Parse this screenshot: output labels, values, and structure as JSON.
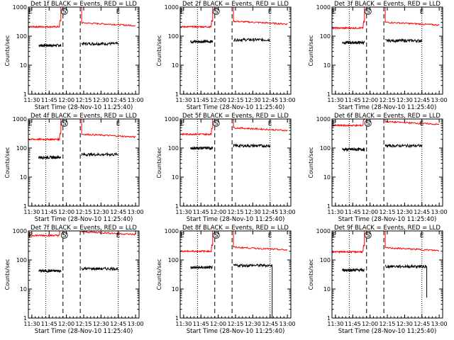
{
  "shared": {
    "ylabel": "Counts/sec",
    "xlabel": "Start Time (28-Nov-10 11:25:40)",
    "xticks": [
      "11:30",
      "11:45",
      "12:00",
      "12:15",
      "12:30",
      "12:45",
      "13:00"
    ],
    "yticks": [
      "1",
      "10",
      "100",
      "1000"
    ],
    "marker_S": "S",
    "marker_E": "E",
    "colors": {
      "events": "#000000",
      "lld": "#ff0000",
      "axes": "#000000"
    }
  },
  "chart_data": [
    {
      "type": "line",
      "title": "Det 1f BLACK = Events, RED = LLD",
      "x_range_min": [
        11.45,
        13.05
      ],
      "y_range": [
        1,
        1000
      ],
      "y_scale": "log",
      "dotted_lines_min": [
        11.7,
        12.75
      ],
      "dashed_lines_min": [
        11.95,
        12.2
      ],
      "series": [
        {
          "name": "Events",
          "segments": [
            {
              "x_range": [
                11.6,
                11.92
              ],
              "level": 48
            },
            {
              "x_range": [
                12.22,
                12.75
              ],
              "level": 55
            }
          ]
        },
        {
          "name": "LLD",
          "segments": [
            {
              "x_range": [
                11.45,
                11.92
              ],
              "level": 210
            },
            {
              "x_range": [
                12.22,
                13.0
              ],
              "level": 230
            }
          ]
        }
      ]
    },
    {
      "type": "line",
      "title": "Det 2f BLACK = Events, RED = LLD",
      "x_range_min": [
        11.45,
        13.05
      ],
      "y_range": [
        1,
        1000
      ],
      "y_scale": "log",
      "dotted_lines_min": [
        11.7,
        12.75
      ],
      "dashed_lines_min": [
        11.95,
        12.2
      ],
      "series": [
        {
          "name": "Events",
          "segments": [
            {
              "x_range": [
                11.6,
                11.92
              ],
              "level": 65
            },
            {
              "x_range": [
                12.22,
                12.75
              ],
              "level": 75
            }
          ]
        },
        {
          "name": "LLD",
          "segments": [
            {
              "x_range": [
                11.45,
                11.92
              ],
              "level": 210
            },
            {
              "x_range": [
                12.22,
                13.0
              ],
              "level": 260
            }
          ]
        }
      ]
    },
    {
      "type": "line",
      "title": "Det 3f BLACK = Events, RED = LLD",
      "x_range_min": [
        11.45,
        13.05
      ],
      "y_range": [
        1,
        1000
      ],
      "y_scale": "log",
      "dotted_lines_min": [
        11.7,
        12.75
      ],
      "dashed_lines_min": [
        11.95,
        12.2
      ],
      "series": [
        {
          "name": "Events",
          "segments": [
            {
              "x_range": [
                11.6,
                11.92
              ],
              "level": 60
            },
            {
              "x_range": [
                12.22,
                12.75
              ],
              "level": 70
            }
          ]
        },
        {
          "name": "LLD",
          "segments": [
            {
              "x_range": [
                11.45,
                11.92
              ],
              "level": 190
            },
            {
              "x_range": [
                12.22,
                13.0
              ],
              "level": 240
            }
          ]
        }
      ]
    },
    {
      "type": "line",
      "title": "Det 4f BLACK = Events, RED = LLD",
      "x_range_min": [
        11.45,
        13.05
      ],
      "y_range": [
        1,
        1000
      ],
      "y_scale": "log",
      "dotted_lines_min": [
        11.7,
        12.75
      ],
      "dashed_lines_min": [
        11.95,
        12.2
      ],
      "series": [
        {
          "name": "Events",
          "segments": [
            {
              "x_range": [
                11.6,
                11.92
              ],
              "level": 48
            },
            {
              "x_range": [
                12.22,
                12.75
              ],
              "level": 60
            }
          ]
        },
        {
          "name": "LLD",
          "segments": [
            {
              "x_range": [
                11.45,
                11.92
              ],
              "level": 200
            },
            {
              "x_range": [
                12.22,
                13.0
              ],
              "level": 240
            }
          ]
        }
      ]
    },
    {
      "type": "line",
      "title": "Det 5f BLACK = Events, RED = LLD",
      "x_range_min": [
        11.45,
        13.05
      ],
      "y_range": [
        1,
        1000
      ],
      "y_scale": "log",
      "dotted_lines_min": [
        11.7,
        12.75
      ],
      "dashed_lines_min": [
        11.95,
        12.2
      ],
      "series": [
        {
          "name": "Events",
          "segments": [
            {
              "x_range": [
                11.6,
                11.92
              ],
              "level": 100
            },
            {
              "x_range": [
                12.22,
                12.75
              ],
              "level": 120
            }
          ]
        },
        {
          "name": "LLD",
          "segments": [
            {
              "x_range": [
                11.45,
                11.92
              ],
              "level": 300
            },
            {
              "x_range": [
                12.22,
                13.0
              ],
              "level": 400
            }
          ]
        }
      ]
    },
    {
      "type": "line",
      "title": "Det 6f BLACK = Events, RED = LLD",
      "x_range_min": [
        11.45,
        13.05
      ],
      "y_range": [
        1,
        1000
      ],
      "y_scale": "log",
      "dotted_lines_min": [
        11.7,
        12.75
      ],
      "dashed_lines_min": [
        11.95,
        12.2
      ],
      "series": [
        {
          "name": "Events",
          "segments": [
            {
              "x_range": [
                11.6,
                11.92
              ],
              "level": 90
            },
            {
              "x_range": [
                12.22,
                12.75
              ],
              "level": 120
            }
          ]
        },
        {
          "name": "LLD",
          "segments": [
            {
              "x_range": [
                11.45,
                11.92
              ],
              "level": 600
            },
            {
              "x_range": [
                12.22,
                13.0
              ],
              "level": 650
            }
          ]
        }
      ]
    },
    {
      "type": "line",
      "title": "Det 7f BLACK = Events, RED = LLD",
      "x_range_min": [
        11.45,
        13.05
      ],
      "y_range": [
        1,
        1000
      ],
      "y_scale": "log",
      "dotted_lines_min": [
        11.7,
        12.75
      ],
      "dashed_lines_min": [
        11.95,
        12.2
      ],
      "series": [
        {
          "name": "Events",
          "segments": [
            {
              "x_range": [
                11.6,
                11.92
              ],
              "level": 42
            },
            {
              "x_range": [
                12.22,
                12.75
              ],
              "level": 50
            }
          ]
        },
        {
          "name": "LLD",
          "segments": [
            {
              "x_range": [
                11.45,
                11.92
              ],
              "level": 700
            },
            {
              "x_range": [
                12.22,
                13.0
              ],
              "level": 750
            }
          ]
        }
      ]
    },
    {
      "type": "line",
      "title": "Det 8f BLACK = Events, RED = LLD",
      "x_range_min": [
        11.45,
        13.05
      ],
      "y_range": [
        1,
        1000
      ],
      "y_scale": "log",
      "dotted_lines_min": [
        11.7,
        12.75
      ],
      "dashed_lines_min": [
        11.95,
        12.2
      ],
      "series": [
        {
          "name": "Events",
          "segments": [
            {
              "x_range": [
                11.6,
                11.92
              ],
              "level": 55
            },
            {
              "x_range": [
                12.22,
                12.78
              ],
              "level": 65,
              "drop_to": 1
            }
          ]
        },
        {
          "name": "LLD",
          "segments": [
            {
              "x_range": [
                11.45,
                11.92
              ],
              "level": 200
            },
            {
              "x_range": [
                12.22,
                13.0
              ],
              "level": 220
            }
          ]
        }
      ]
    },
    {
      "type": "line",
      "title": "Det 9f BLACK = Events, RED = LLD",
      "x_range_min": [
        11.45,
        13.05
      ],
      "y_range": [
        1,
        1000
      ],
      "y_scale": "log",
      "dotted_lines_min": [
        11.7,
        12.75
      ],
      "dashed_lines_min": [
        11.95,
        12.2
      ],
      "series": [
        {
          "name": "Events",
          "segments": [
            {
              "x_range": [
                11.6,
                11.92
              ],
              "level": 45
            },
            {
              "x_range": [
                12.22,
                12.82
              ],
              "level": 60,
              "drop_to": 5
            }
          ]
        },
        {
          "name": "LLD",
          "segments": [
            {
              "x_range": [
                11.45,
                11.92
              ],
              "level": 190
            },
            {
              "x_range": [
                12.22,
                13.0
              ],
              "level": 210
            }
          ]
        }
      ]
    }
  ]
}
